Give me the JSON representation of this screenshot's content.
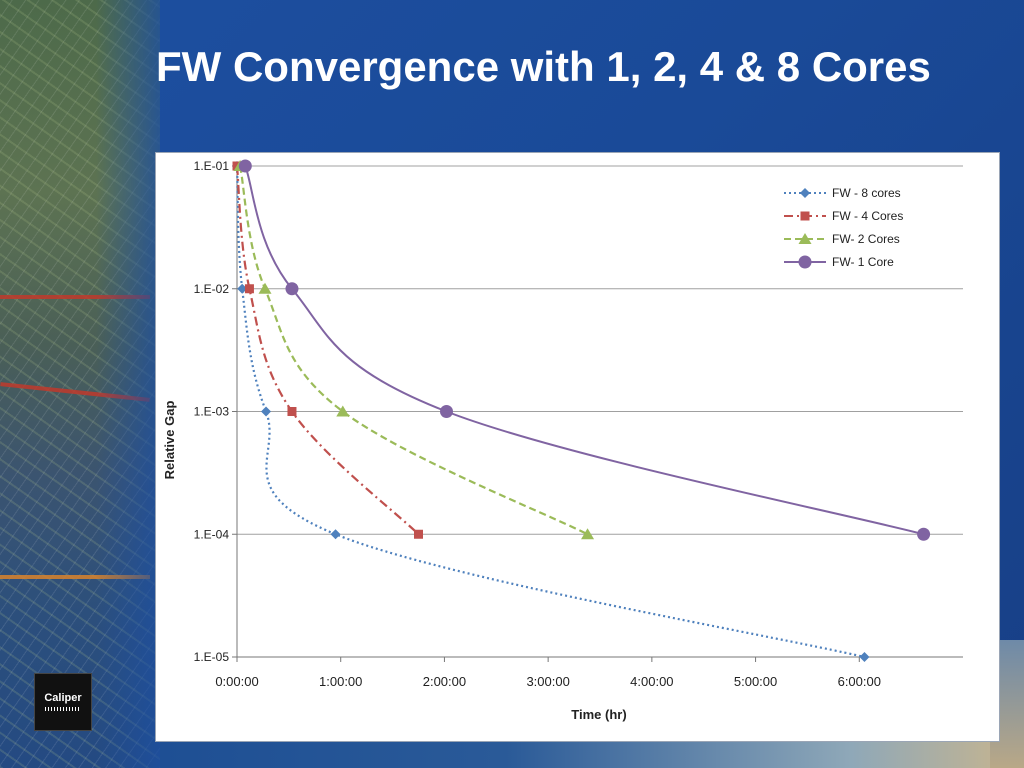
{
  "slide": {
    "title": "FW Convergence with 1, 2, 4 & 8 Cores",
    "logo_text": "Caliper"
  },
  "chart_data": {
    "type": "line",
    "xlabel": "Time (hr)",
    "ylabel": "Relative Gap",
    "y_scale": "log",
    "ylim": [
      "1.E-05",
      "1.E-01"
    ],
    "y_ticks": [
      "1.E-01",
      "1.E-02",
      "1.E-03",
      "1.E-04",
      "1.E-05"
    ],
    "x_ticks": [
      "0:00:00",
      "1:00:00",
      "2:00:00",
      "3:00:00",
      "4:00:00",
      "5:00:00",
      "6:00:00"
    ],
    "xlim_hours": [
      0,
      7
    ],
    "grid": "horizontal",
    "legend_position": "top-right",
    "series": [
      {
        "name": "FW - 8 cores",
        "color": "#4f81bd",
        "dash": "dotted",
        "marker": "diamond",
        "x_hours": [
          0.0,
          0.05,
          0.28,
          0.95,
          6.05
        ],
        "y": [
          0.1,
          0.01,
          0.001,
          0.0001,
          1e-05
        ]
      },
      {
        "name": "FW - 4 Cores",
        "color": "#c0504d",
        "dash": "dashdot",
        "marker": "square",
        "x_hours": [
          0.0,
          0.12,
          0.53,
          1.75
        ],
        "y": [
          0.1,
          0.01,
          0.001,
          0.0001
        ]
      },
      {
        "name": "FW- 2 Cores",
        "color": "#9bbb59",
        "dash": "dashed",
        "marker": "triangle",
        "x_hours": [
          0.03,
          0.27,
          1.02,
          3.38
        ],
        "y": [
          0.1,
          0.01,
          0.001,
          0.0001
        ]
      },
      {
        "name": "FW- 1 Core",
        "color": "#8064a2",
        "dash": "solid",
        "marker": "circle",
        "x_hours": [
          0.08,
          0.53,
          2.02,
          6.62
        ],
        "y": [
          0.1,
          0.01,
          0.001,
          0.0001
        ]
      }
    ]
  }
}
